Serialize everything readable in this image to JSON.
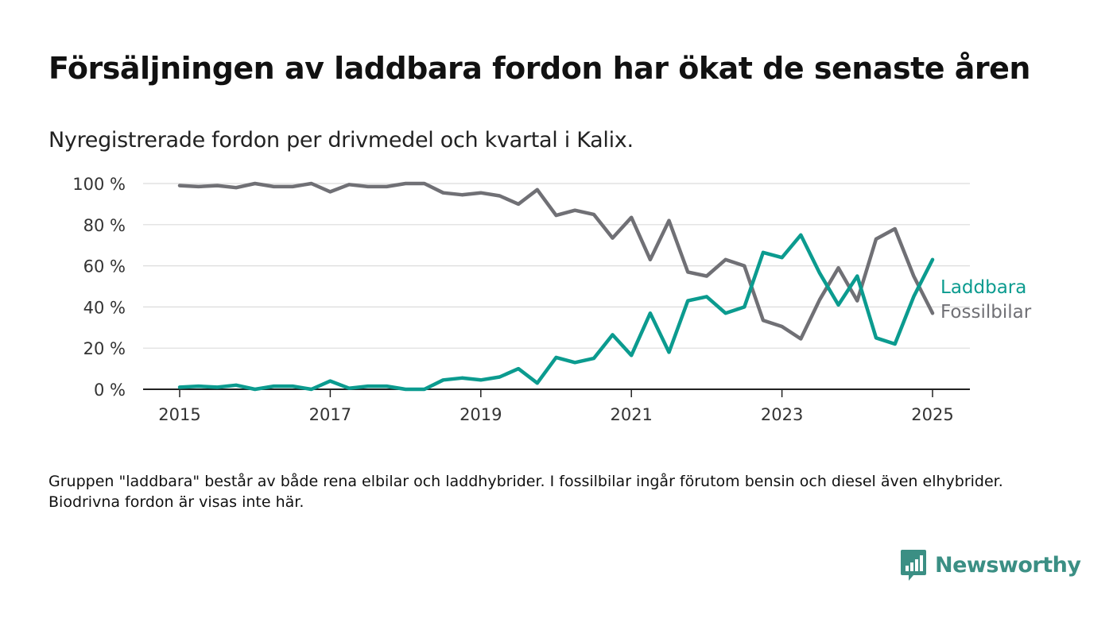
{
  "title": "Försäljningen av laddbara fordon har ökat de senaste åren",
  "subtitle": "Nyregistrerade fordon per drivmedel och kvartal i Kalix.",
  "note": "Gruppen \"laddbara\" består av både rena elbilar och laddhybrider. I fossilbilar ingår förutom bensin och diesel även elhybrider. Biodrivna fordon är visas inte här.",
  "brand": {
    "name": "Newsworthy",
    "color": "#3b8f84"
  },
  "chart_data": {
    "type": "line",
    "x_unit": "quarter",
    "x_ticks": [
      "2015",
      "2017",
      "2019",
      "2021",
      "2023",
      "2025"
    ],
    "y_ticks": [
      "0 %",
      "20 %",
      "40 %",
      "60 %",
      "80 %",
      "100 %"
    ],
    "ylim": [
      0,
      100
    ],
    "grid": true,
    "legend": "inline-right",
    "x": [
      "2015Q1",
      "2015Q2",
      "2015Q3",
      "2015Q4",
      "2016Q1",
      "2016Q2",
      "2016Q3",
      "2016Q4",
      "2017Q1",
      "2017Q2",
      "2017Q3",
      "2017Q4",
      "2018Q1",
      "2018Q2",
      "2018Q3",
      "2018Q4",
      "2019Q1",
      "2019Q2",
      "2019Q3",
      "2019Q4",
      "2020Q1",
      "2020Q2",
      "2020Q3",
      "2020Q4",
      "2021Q1",
      "2021Q2",
      "2021Q3",
      "2021Q4",
      "2022Q1",
      "2022Q2",
      "2022Q3",
      "2022Q4",
      "2023Q1",
      "2023Q2",
      "2023Q3",
      "2023Q4",
      "2024Q1",
      "2024Q2",
      "2024Q3",
      "2024Q4",
      "2025Q1"
    ],
    "series": [
      {
        "name": "Laddbara",
        "color": "#0b9b8f",
        "values": [
          1,
          1.5,
          1,
          2,
          0,
          1.5,
          1.5,
          0,
          4,
          0.5,
          1.5,
          1.5,
          0,
          0,
          4.5,
          5.5,
          4.5,
          6,
          10,
          3,
          15.5,
          13,
          15,
          26.5,
          16.5,
          37,
          18,
          43,
          45,
          37,
          40,
          66.5,
          64,
          75,
          56.5,
          41,
          55,
          25,
          22,
          45,
          63
        ]
      },
      {
        "name": "Fossilbilar",
        "color": "#707075",
        "values": [
          99,
          98.5,
          99,
          98,
          100,
          98.5,
          98.5,
          100,
          96,
          99.5,
          98.5,
          98.5,
          100,
          100,
          95.5,
          94.5,
          95.5,
          94,
          90,
          97,
          84.5,
          87,
          85,
          73.5,
          83.5,
          63,
          82,
          57,
          55,
          63,
          60,
          33.5,
          30.5,
          24.5,
          43.5,
          59,
          43,
          73,
          78,
          55,
          37
        ]
      }
    ]
  }
}
